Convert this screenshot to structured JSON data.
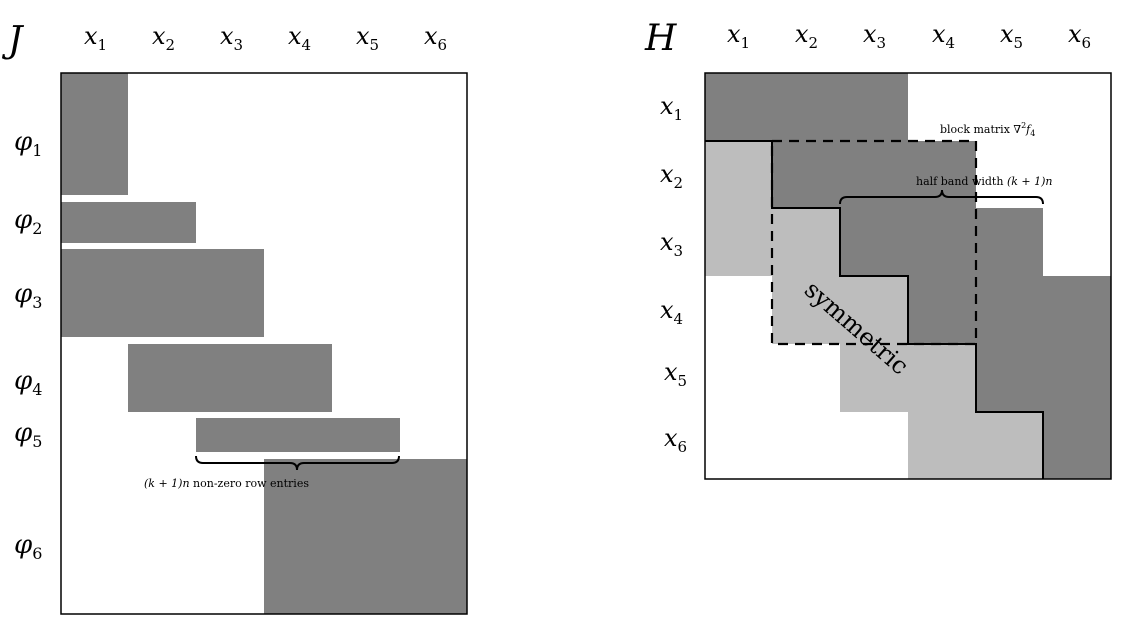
{
  "jacobian": {
    "symbol": "J",
    "columns": [
      {
        "var": "x",
        "sub": "1"
      },
      {
        "var": "x",
        "sub": "2"
      },
      {
        "var": "x",
        "sub": "3"
      },
      {
        "var": "x",
        "sub": "4"
      },
      {
        "var": "x",
        "sub": "5"
      },
      {
        "var": "x",
        "sub": "6"
      }
    ],
    "rows": [
      {
        "var": "φ",
        "sub": "1"
      },
      {
        "var": "φ",
        "sub": "2"
      },
      {
        "var": "φ",
        "sub": "3"
      },
      {
        "var": "φ",
        "sub": "4"
      },
      {
        "var": "φ",
        "sub": "5"
      },
      {
        "var": "φ",
        "sub": "6"
      }
    ],
    "annotation": {
      "expr": "(k + 1)n",
      "text": "non-zero row entries"
    }
  },
  "hessian": {
    "symbol": "H",
    "columns": [
      {
        "var": "x",
        "sub": "1"
      },
      {
        "var": "x",
        "sub": "2"
      },
      {
        "var": "x",
        "sub": "3"
      },
      {
        "var": "x",
        "sub": "4"
      },
      {
        "var": "x",
        "sub": "5"
      },
      {
        "var": "x",
        "sub": "6"
      }
    ],
    "rows": [
      {
        "var": "x",
        "sub": "1"
      },
      {
        "var": "x",
        "sub": "2"
      },
      {
        "var": "x",
        "sub": "3"
      },
      {
        "var": "x",
        "sub": "4"
      },
      {
        "var": "x",
        "sub": "5"
      },
      {
        "var": "x",
        "sub": "6"
      }
    ],
    "block_label": {
      "text": "block matrix ∇",
      "sup": "2",
      "func": "f",
      "sub": "4"
    },
    "band_label": {
      "text": "half band width ",
      "expr": "(k + 1)n"
    },
    "symmetric_label": "symmetric"
  },
  "colors": {
    "dark": "#808080",
    "light": "#bdbdbd",
    "stroke": "#000000"
  }
}
